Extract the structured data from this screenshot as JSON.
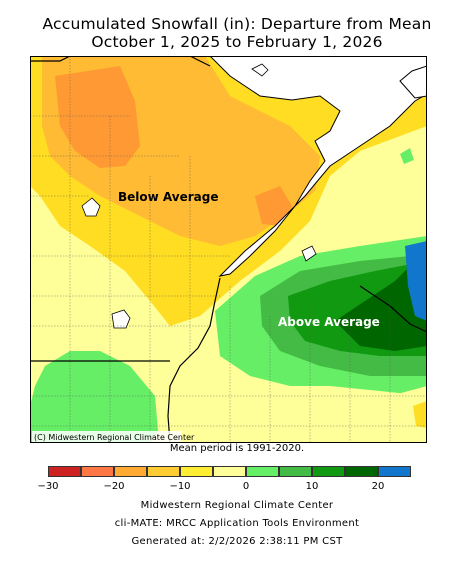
{
  "title": {
    "line1": "Accumulated Snowfall (in): Departure from Mean",
    "line2": "October 1, 2025 to February 1, 2026"
  },
  "map": {
    "labels": {
      "below": "Below Average",
      "above": "Above Average",
      "credit": "(C) Midwestern Regional Climate Center"
    },
    "colors": {
      "lake": "#ffffff",
      "pale_yellow": "#ffff99",
      "yellow": "#ffdd22",
      "light_orange": "#ffbb33",
      "orange": "#ff9933",
      "light_green": "#66ee66",
      "green": "#33bb33",
      "dark_green": "#119911",
      "darker_green": "#006600",
      "blue": "#1177cc"
    }
  },
  "period_note": "Mean period is 1991-2020.",
  "legend": {
    "colors": [
      "#cc2222",
      "#ff7744",
      "#ffaa33",
      "#ffcc33",
      "#ffee33",
      "#ffff99",
      "#66ee66",
      "#44bb44",
      "#119911",
      "#006600",
      "#1177cc"
    ],
    "ticks": [
      "−30",
      "−20",
      "−10",
      "0",
      "10",
      "20"
    ]
  },
  "footer": {
    "line1": "Midwestern Regional Climate Center",
    "line2": "cli-MATE: MRCC Application Tools Environment",
    "line3": "Generated at: 2/2/2026 2:38:11 PM CST"
  }
}
